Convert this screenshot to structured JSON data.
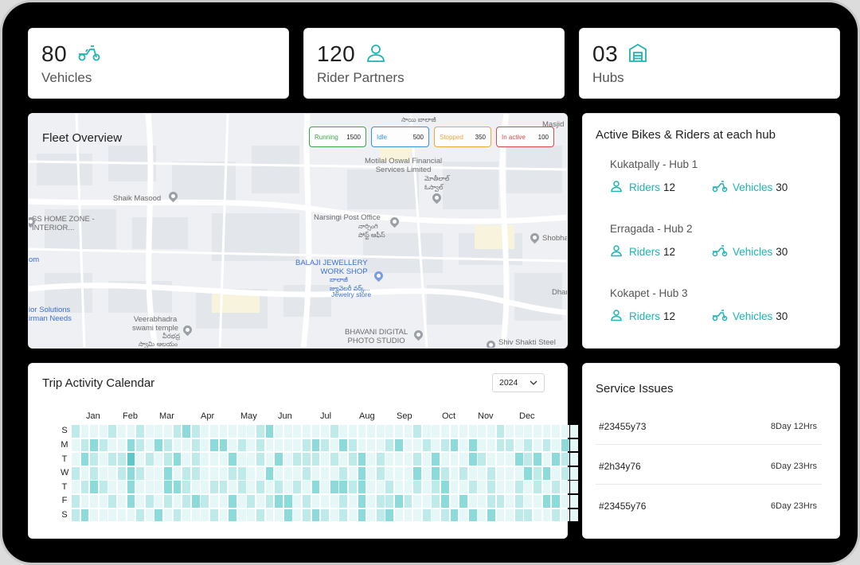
{
  "stats": [
    {
      "value": "80",
      "label": "Vehicles",
      "icon": "scooter-icon"
    },
    {
      "value": "120",
      "label": "Rider Partners",
      "icon": "user-icon"
    },
    {
      "value": "03",
      "label": "Hubs",
      "icon": "warehouse-icon"
    }
  ],
  "fleet": {
    "title": "Fleet Overview",
    "statuses": [
      {
        "label": "Running",
        "value": "1500",
        "color": "#3aa64a"
      },
      {
        "label": "Idle",
        "value": "500",
        "color": "#3b8fe0"
      },
      {
        "label": "Stopped",
        "value": "350",
        "color": "#f0a73a"
      },
      {
        "label": "In active",
        "value": "100",
        "color": "#e04848"
      }
    ],
    "map_labels": {
      "masjid": "Masjid",
      "telugu_top": "సాయి బాలాజీ",
      "motilal": "Motilal Oswal Financial\nServices Limited",
      "motilal_te": "మోతీలాల్\nఓస్వాల్",
      "shaik": "Shaik Masood",
      "ss_home": "SS HOME ZONE -\nINTERIOR...",
      "narsingi": "Narsingi Post Office",
      "narsingi_te": "నార్సింగి\nపోస్ట్ ఆఫీస్",
      "shobha": "Shobha",
      "om": "om",
      "balaji": "BALAJI JEWELLERY\nWORK SHOP",
      "balaji_te": "బాలాజీ\nజ్యువెలరీ వర్క్...",
      "jewelry": "Jewelry store",
      "dhar": "Dhar",
      "solutions": "ior Solutions\nirman Needs",
      "veerabhadra": "Veerabhadra\nswami temple",
      "veerabhadra_te": "వీరభద్ర",
      "swami_te": "స్వామి ఆలయం",
      "bhavani": "BHAVANI DIGITAL\nPHOTO STUDIO",
      "shiv": "Shiv Shakti Steel"
    }
  },
  "hubs": {
    "title": "Active Bikes & Riders at each hub",
    "riders_label": "Riders",
    "vehicles_label": "Vehicles",
    "items": [
      {
        "name": "Kukatpally - Hub 1",
        "riders": "12",
        "vehicles": "30"
      },
      {
        "name": "Erragada - Hub 2",
        "riders": "12",
        "vehicles": "30"
      },
      {
        "name": "Kokapet - Hub 3",
        "riders": "12",
        "vehicles": "30"
      }
    ]
  },
  "calendar": {
    "title": "Trip Activity Calendar",
    "year": "2024",
    "months": [
      "Jan",
      "Feb",
      "Mar",
      "Apr",
      "May",
      "Jun",
      "Jul",
      "Aug",
      "Sep",
      "Oct",
      "Nov",
      "Dec"
    ],
    "days": [
      "S",
      "M",
      "T",
      "W",
      "T",
      "F",
      "S"
    ],
    "palette": [
      "#e6f7f7",
      "#bfeaea",
      "#8cdada",
      "#5cc8c8"
    ],
    "activity_levels": [
      "1000100100012100000012000000100000000100000000100000000",
      "0121002102100102201010000121021000120010120200110101020",
      "0210113010120100020010201110101201000102000210002120210",
      "1010012100201100011002000100010201000202101001000212010",
      "0121002000221001101010101020221200100101200101001010100",
      "1000102010101210020101220100010201121001202001101002200",
      "1200000102010001020010020121010201200010120202001100100"
    ]
  },
  "service": {
    "title": "Service Issues",
    "items": [
      {
        "id": "#23455y73",
        "age": "8Day 12Hrs"
      },
      {
        "id": "#2h34y76",
        "age": "6Day 23Hrs"
      },
      {
        "id": "#23455y76",
        "age": "6Day 23Hrs"
      }
    ]
  }
}
